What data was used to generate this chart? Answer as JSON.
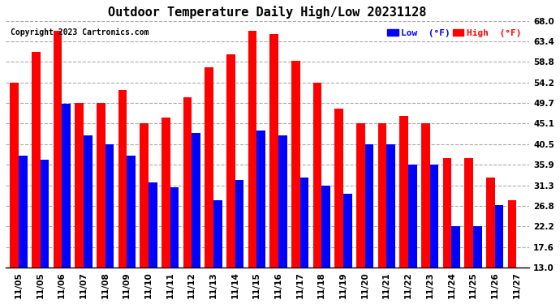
{
  "title": "Outdoor Temperature Daily High/Low 20231128",
  "copyright": "Copyright 2023 Cartronics.com",
  "legend_low": "Low  (°F)",
  "legend_high": "High  (°F)",
  "low_color": "#0000ff",
  "high_color": "#ff0000",
  "background_color": "#ffffff",
  "grid_color": "#aaaaaa",
  "dates": [
    "11/05",
    "11/05",
    "11/06",
    "11/07",
    "11/08",
    "11/09",
    "11/10",
    "11/11",
    "11/12",
    "11/13",
    "11/14",
    "11/15",
    "11/16",
    "11/17",
    "11/18",
    "11/19",
    "11/20",
    "11/21",
    "11/22",
    "11/23",
    "11/24",
    "11/25",
    "11/26",
    "11/27"
  ],
  "highs": [
    54.2,
    61.0,
    65.8,
    49.7,
    49.7,
    52.5,
    45.1,
    46.4,
    50.9,
    57.6,
    60.5,
    65.8,
    65.0,
    59.0,
    54.2,
    48.5,
    45.1,
    45.1,
    46.8,
    45.1,
    37.4,
    37.4,
    33.0,
    28.0
  ],
  "lows": [
    38.0,
    37.0,
    49.5,
    42.5,
    40.5,
    38.0,
    32.0,
    31.0,
    43.0,
    28.0,
    32.5,
    43.5,
    42.5,
    33.0,
    31.3,
    29.5,
    40.5,
    40.5,
    35.9,
    35.9,
    22.2,
    22.2,
    27.0,
    13.0
  ],
  "ylim_min": 13.0,
  "ylim_max": 68.0,
  "yticks": [
    13.0,
    17.6,
    22.2,
    26.8,
    31.3,
    35.9,
    40.5,
    45.1,
    49.7,
    54.2,
    58.8,
    63.4,
    68.0
  ],
  "bar_width": 0.4,
  "figsize": [
    6.9,
    3.75
  ],
  "dpi": 100
}
